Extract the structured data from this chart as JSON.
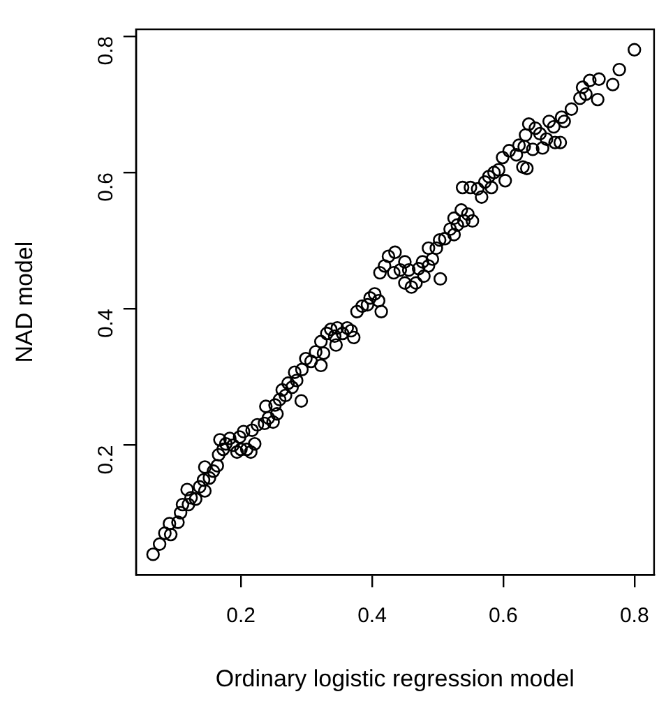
{
  "chart_data": {
    "type": "scatter",
    "xlabel": "Ordinary logistic regression model",
    "ylabel": "NAD model",
    "xlim": [
      0.04,
      0.83
    ],
    "ylim": [
      0.01,
      0.81
    ],
    "xticks": [
      0.2,
      0.4,
      0.6,
      0.8
    ],
    "yticks": [
      0.2,
      0.4,
      0.6,
      0.8
    ],
    "grid": false,
    "legend": false,
    "marker": "circle",
    "series": [
      {
        "color": "#000000",
        "x": [
          0.066,
          0.076,
          0.084,
          0.093,
          0.091,
          0.104,
          0.108,
          0.111,
          0.12,
          0.124,
          0.131,
          0.118,
          0.137,
          0.145,
          0.143,
          0.152,
          0.145,
          0.158,
          0.164,
          0.166,
          0.173,
          0.177,
          0.168,
          0.183,
          0.188,
          0.194,
          0.2,
          0.209,
          0.215,
          0.198,
          0.204,
          0.221,
          0.217,
          0.225,
          0.236,
          0.242,
          0.249,
          0.238,
          0.252,
          0.255,
          0.259,
          0.263,
          0.268,
          0.272,
          0.278,
          0.285,
          0.292,
          0.282,
          0.293,
          0.299,
          0.307,
          0.314,
          0.322,
          0.322,
          0.326,
          0.331,
          0.337,
          0.343,
          0.347,
          0.345,
          0.355,
          0.362,
          0.368,
          0.372,
          0.377,
          0.385,
          0.393,
          0.397,
          0.404,
          0.41,
          0.414,
          0.412,
          0.419,
          0.425,
          0.435,
          0.433,
          0.443,
          0.45,
          0.456,
          0.46,
          0.45,
          0.467,
          0.471,
          0.477,
          0.479,
          0.486,
          0.492,
          0.498,
          0.503,
          0.486,
          0.504,
          0.511,
          0.519,
          0.525,
          0.53,
          0.536,
          0.525,
          0.54,
          0.546,
          0.553,
          0.538,
          0.55,
          0.561,
          0.567,
          0.572,
          0.578,
          0.582,
          0.586,
          0.593,
          0.603,
          0.599,
          0.609,
          0.62,
          0.624,
          0.634,
          0.63,
          0.636,
          0.645,
          0.632,
          0.649,
          0.639,
          0.656,
          0.666,
          0.66,
          0.67,
          0.677,
          0.689,
          0.679,
          0.687,
          0.693,
          0.704,
          0.717,
          0.721,
          0.726,
          0.732,
          0.744,
          0.746,
          0.767,
          0.777,
          0.8
        ],
        "values": [
          0.04,
          0.055,
          0.071,
          0.069,
          0.085,
          0.087,
          0.101,
          0.113,
          0.113,
          0.123,
          0.121,
          0.135,
          0.139,
          0.133,
          0.149,
          0.152,
          0.168,
          0.162,
          0.17,
          0.186,
          0.194,
          0.202,
          0.208,
          0.21,
          0.2,
          0.19,
          0.194,
          0.194,
          0.19,
          0.212,
          0.22,
          0.202,
          0.222,
          0.23,
          0.232,
          0.24,
          0.234,
          0.257,
          0.259,
          0.246,
          0.267,
          0.281,
          0.273,
          0.291,
          0.285,
          0.295,
          0.265,
          0.307,
          0.311,
          0.327,
          0.323,
          0.337,
          0.352,
          0.317,
          0.335,
          0.364,
          0.37,
          0.36,
          0.372,
          0.347,
          0.364,
          0.372,
          0.368,
          0.358,
          0.396,
          0.404,
          0.406,
          0.416,
          0.422,
          0.412,
          0.396,
          0.453,
          0.463,
          0.477,
          0.483,
          0.453,
          0.457,
          0.469,
          0.457,
          0.432,
          0.438,
          0.438,
          0.459,
          0.469,
          0.448,
          0.463,
          0.473,
          0.489,
          0.501,
          0.489,
          0.444,
          0.503,
          0.517,
          0.533,
          0.523,
          0.545,
          0.509,
          0.529,
          0.539,
          0.529,
          0.578,
          0.578,
          0.576,
          0.564,
          0.586,
          0.594,
          0.578,
          0.6,
          0.604,
          0.588,
          0.622,
          0.632,
          0.626,
          0.64,
          0.655,
          0.608,
          0.606,
          0.634,
          0.638,
          0.665,
          0.671,
          0.657,
          0.649,
          0.636,
          0.675,
          0.667,
          0.681,
          0.644,
          0.644,
          0.675,
          0.693,
          0.709,
          0.725,
          0.715,
          0.735,
          0.707,
          0.737,
          0.729,
          0.751,
          0.78
        ]
      }
    ]
  }
}
